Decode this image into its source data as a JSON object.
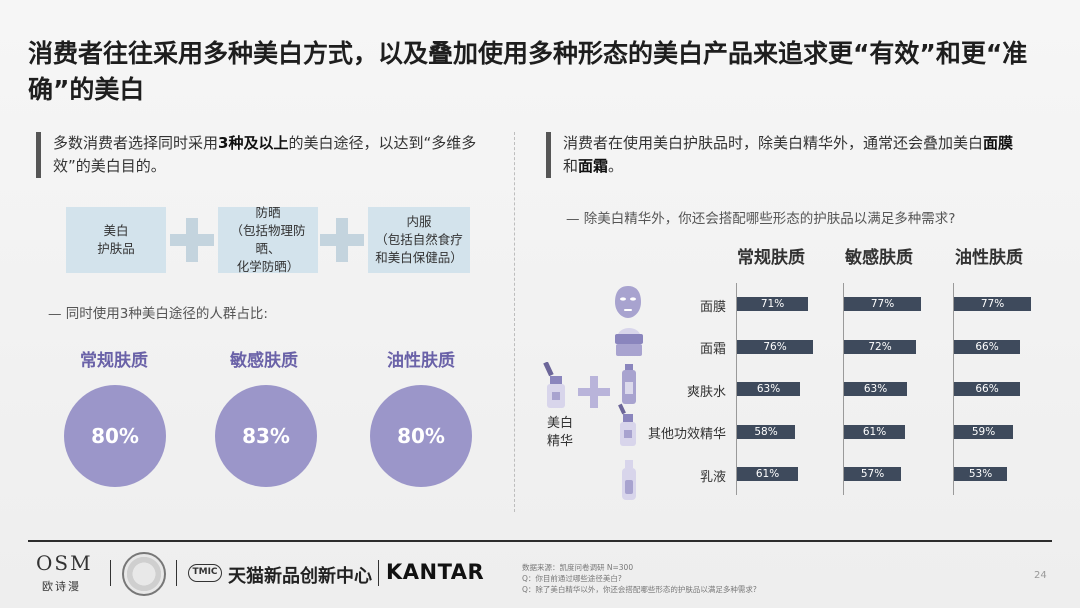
{
  "title": "消费者往往采用多种美白方式，以及叠加使用多种形态的美白产品来追求更“有效”和更“准确”的美白",
  "left": {
    "callout_pre": "多数消费者选择同时采用",
    "callout_bold": "3种及以上",
    "callout_post": "的美白途径，以达到“多维多效”的美白目的。",
    "methods": [
      {
        "line1": "美白",
        "line2": "护肤品"
      },
      {
        "line1": "防晒",
        "line2": "（包括物理防晒、",
        "line3": "化学防晒）"
      },
      {
        "line1": "内服",
        "line2": "（包括自然食疗",
        "line3": "和美白保健品）"
      }
    ],
    "note": "— 同时使用3种美白途径的人群占比:",
    "groups": [
      {
        "label": "常规肤质",
        "value": "80%"
      },
      {
        "label": "敏感肤质",
        "value": "83%"
      },
      {
        "label": "油性肤质",
        "value": "80%"
      }
    ]
  },
  "right": {
    "callout_pre": "消费者在使用美白护肤品时，除美白精华外，通常还会叠加美白",
    "callout_bold1": "面膜",
    "callout_mid": "和",
    "callout_bold2": "面霜",
    "callout_post": "。",
    "note": "— 除美白精华外，你还会搭配哪些形态的护肤品以满足多种需求?",
    "essence_label_1": "美白",
    "essence_label_2": "精华"
  },
  "chart_data": {
    "type": "bar",
    "orientation": "horizontal",
    "categories": [
      "面膜",
      "面霜",
      "爽肤水",
      "其他功效精华",
      "乳液"
    ],
    "series": [
      {
        "name": "常规肤质",
        "values": [
          71,
          76,
          63,
          58,
          61
        ],
        "labels": [
          "71%",
          "76%",
          "63%",
          "58%",
          "61%"
        ]
      },
      {
        "name": "敏感肤质",
        "values": [
          77,
          72,
          63,
          61,
          57
        ],
        "labels": [
          "77%",
          "72%",
          "63%",
          "61%",
          "57%"
        ]
      },
      {
        "name": "油性肤质",
        "values": [
          77,
          66,
          66,
          59,
          53
        ],
        "labels": [
          "77%",
          "66%",
          "66%",
          "59%",
          "53%"
        ]
      }
    ],
    "unit": "%",
    "bar_color": "#3e4a5c"
  },
  "colors": {
    "accent_purple": "#9b96c9",
    "label_purple": "#6a62a8",
    "method_box": "#d3e3ec"
  },
  "footer": {
    "logo_osm": "OSM",
    "logo_osm_sub": "欧诗漫",
    "tmic_badge": "TMIC",
    "tmic_text": "天猫新品创新中心",
    "kantar": "KANTAR",
    "source_1": "数据来源：凯度问卷调研 N=300",
    "source_2": "Q：你目前通过哪些途径美白?",
    "source_3": "Q：除了美白精华以外，你还会搭配哪些形态的护肤品以满足多种需求?",
    "page_number": "24"
  }
}
